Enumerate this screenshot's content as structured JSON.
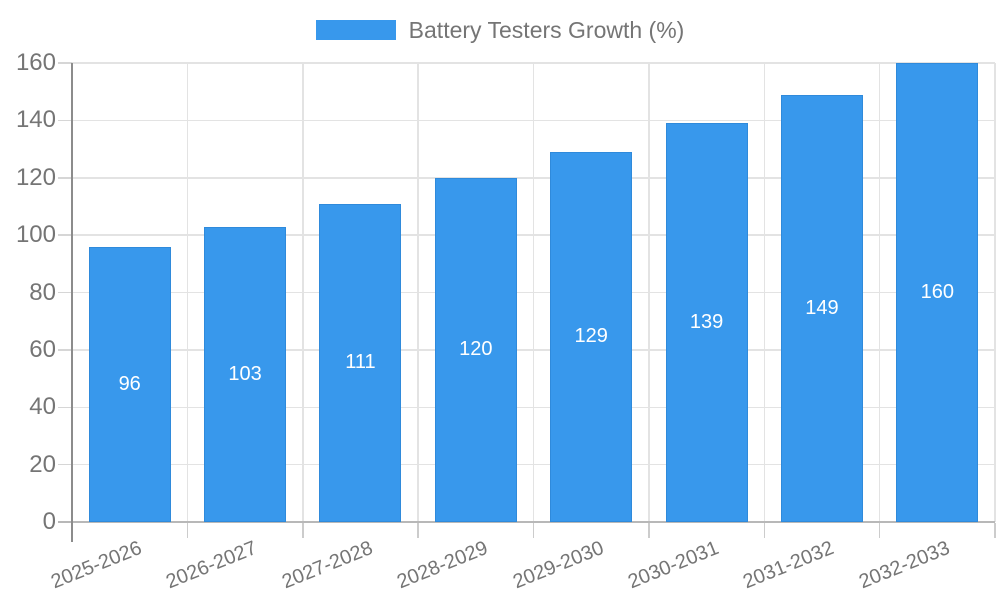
{
  "chart_data": {
    "type": "bar",
    "title": "Battery Testers Growth (%)",
    "legend": {
      "label": "Battery Testers Growth (%)",
      "position": "top-center"
    },
    "categories": [
      "2025-2026",
      "2026-2027",
      "2027-2028",
      "2028-2029",
      "2029-2030",
      "2030-2031",
      "2031-2032",
      "2032-2033"
    ],
    "series": [
      {
        "name": "Battery Testers Growth (%)",
        "values": [
          96,
          103,
          111,
          120,
          129,
          139,
          149,
          160
        ]
      }
    ],
    "value_labels": [
      "96",
      "103",
      "111",
      "120",
      "129",
      "139",
      "149",
      "160"
    ],
    "xlabel": "",
    "ylabel": "",
    "ylim": [
      0,
      160
    ],
    "yticks": [
      0,
      20,
      40,
      60,
      80,
      100,
      120,
      140,
      160
    ],
    "grid": true,
    "bar_color": "#3898ec",
    "bar_label_color": "#ffffff",
    "axis_text_color": "#757575"
  }
}
